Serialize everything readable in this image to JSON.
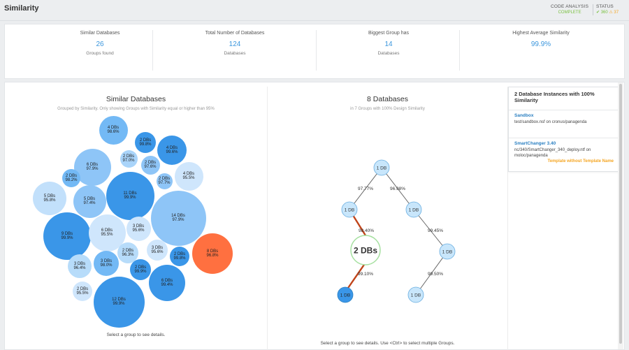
{
  "header": {
    "title": "Similarity",
    "code_analysis_label": "CODE ANALYSIS",
    "code_analysis_value": "COMPLETE",
    "status_label": "STATUS",
    "status_ok": "✔ 360",
    "status_warn": "⚠ 37"
  },
  "stats": [
    {
      "title": "Similar Databases",
      "value": "26",
      "sub": "Groups found"
    },
    {
      "title": "Total Number of Databases",
      "value": "124",
      "sub": "Databases"
    },
    {
      "title": "Biggest Group has",
      "value": "14",
      "sub": "Databases"
    },
    {
      "title": "Highest Average Similarity",
      "value": "99.9%",
      "sub": ""
    }
  ],
  "left_panel": {
    "title": "Similar Databases",
    "subtitle": "Grouped by Similarity. Only showing Groups with Similarity equal or higher than 95%",
    "hint": "Select a group to see details."
  },
  "bubbles": [
    {
      "label": "4 DBs",
      "pct": "98.6%",
      "color": "#73b9f5"
    },
    {
      "label": "2 DBs",
      "pct": "99.8%",
      "color": "#3a96e8"
    },
    {
      "label": "4 DBs",
      "pct": "99.6%",
      "color": "#3a96e8"
    },
    {
      "label": "2 DBs",
      "pct": "97.0%",
      "color": "#a9d4fa"
    },
    {
      "label": "2 DBs",
      "pct": "97.6%",
      "color": "#8ec5f7"
    },
    {
      "label": "6 DBs",
      "pct": "97.9%",
      "color": "#8ec5f7"
    },
    {
      "label": "2 DBs",
      "pct": "98.2%",
      "color": "#73b9f5"
    },
    {
      "label": "2 DBs",
      "pct": "97.7%",
      "color": "#8ec5f7"
    },
    {
      "label": "4 DBs",
      "pct": "95.5%",
      "color": "#cfe6fc"
    },
    {
      "label": "5 DBs",
      "pct": "95.8%",
      "color": "#c2e0fb"
    },
    {
      "label": "5 DBs",
      "pct": "97.4%",
      "color": "#8ec5f7"
    },
    {
      "label": "11 DBs",
      "pct": "99.9%",
      "color": "#3a96e8"
    },
    {
      "label": "14 DBs",
      "pct": "97.9%",
      "color": "#8ec5f7"
    },
    {
      "label": "9 DBs",
      "pct": "99.9%",
      "color": "#3a96e8"
    },
    {
      "label": "6 DBs",
      "pct": "95.5%",
      "color": "#cfe6fc"
    },
    {
      "label": "3 DBs",
      "pct": "95.6%",
      "color": "#cfe6fc"
    },
    {
      "label": "8 DBs",
      "pct": "96.8%",
      "color": "#ff7040"
    },
    {
      "label": "2 DBs",
      "pct": "96.3%",
      "color": "#b7dcfa"
    },
    {
      "label": "3 DBs",
      "pct": "95.6%",
      "color": "#cfe6fc"
    },
    {
      "label": "2 DBs",
      "pct": "99.8%",
      "color": "#3a96e8"
    },
    {
      "label": "3 DBs",
      "pct": "96.4%",
      "color": "#b7dcfa"
    },
    {
      "label": "3 DBs",
      "pct": "98.0%",
      "color": "#73b9f5"
    },
    {
      "label": "2 DBs",
      "pct": "99.9%",
      "color": "#3a96e8"
    },
    {
      "label": "6 DBs",
      "pct": "99.4%",
      "color": "#3a96e8"
    },
    {
      "label": "2 DBs",
      "pct": "95.5%",
      "color": "#cfe6fc"
    },
    {
      "label": "12 DBs",
      "pct": "99.9%",
      "color": "#3a96e8"
    }
  ],
  "middle_panel": {
    "title": "8 Databases",
    "subtitle": "in 7 Groups with 100% Design Similarity",
    "hint": "Select a group to see details. Use <Ctrl> to select multiple Groups."
  },
  "tree": {
    "nodes": {
      "root": "1 DB",
      "left": "1 DB",
      "right": "1 DB",
      "center": "2 DBs",
      "right2": "1 DB",
      "leaf_left": "1 DB",
      "leaf_right": "1 DB"
    },
    "edges": {
      "root_left": "97.77%",
      "root_right": "96.98%",
      "left_center": "98.40%",
      "right_right2": "99.45%",
      "center_leaf": "99.10%",
      "right2_leaf": "99.50%"
    },
    "highlight_color": "#c0441a"
  },
  "info_panel": {
    "title": "2 Database Instances with 100% Similarity",
    "items": [
      {
        "name": "Sandbox",
        "path": "test/sandbox.nsf on cronus/panagenda",
        "flag": ""
      },
      {
        "name": "SmartChanger 3.40",
        "path": "nc/340/SmartChanger_340_deploy.ntf on moloc/panagenda",
        "flag": "Template without Template Name"
      }
    ]
  }
}
